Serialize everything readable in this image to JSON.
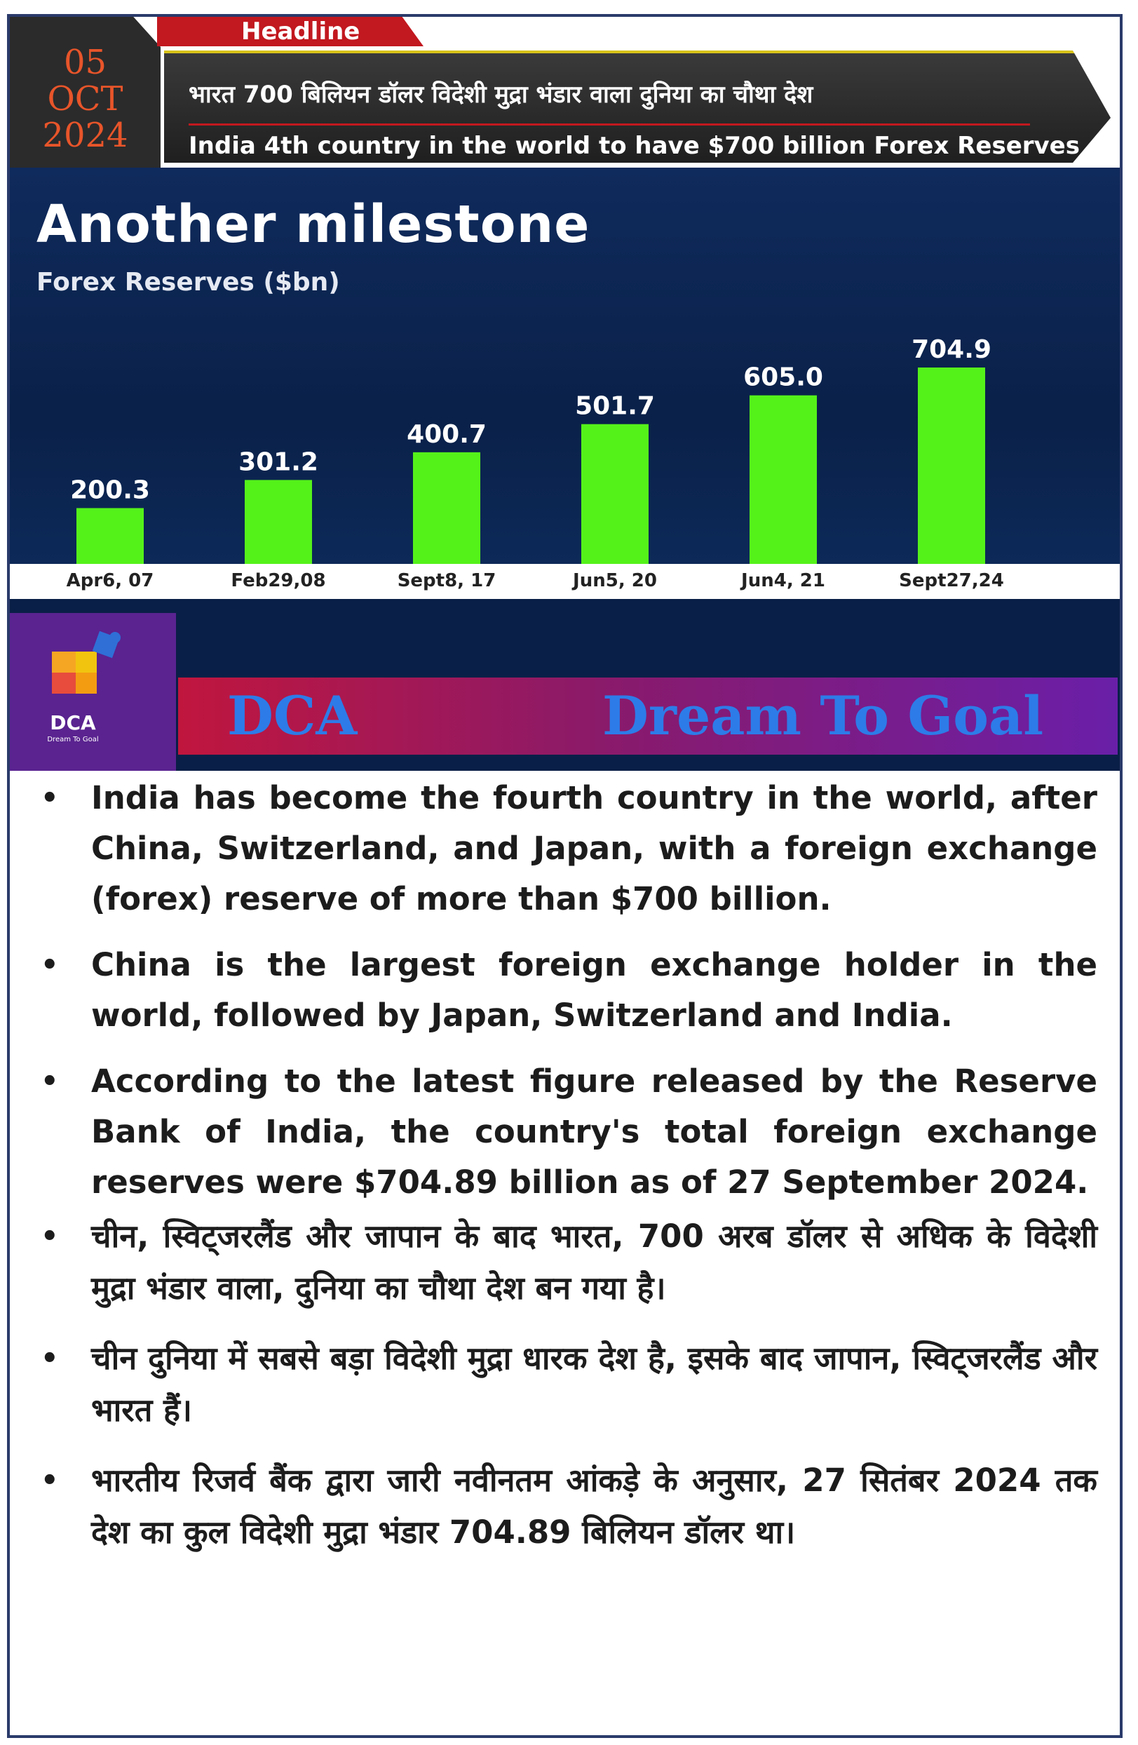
{
  "header": {
    "date_day": "05",
    "date_month": "OCT",
    "date_year": "2024",
    "tab_label": "Headline",
    "headline_hindi": "भारत 700 बिलियन डॉलर विदेशी मुद्रा भंडार वाला दुनिया का चौथा देश",
    "headline_english": "India 4th country in the world to have $700 billion Forex Reserves"
  },
  "chart": {
    "title": "Another milestone",
    "subtitle": "Forex Reserves ($bn)"
  },
  "chart_data": {
    "type": "bar",
    "title": "Another milestone",
    "ylabel": "Forex Reserves ($bn)",
    "categories": [
      "Apr6, 07",
      "Feb29,08",
      "Sept8, 17",
      "Jun5, 20",
      "Jun4, 21",
      "Sept27,24"
    ],
    "values": [
      200.3,
      301.2,
      400.7,
      501.7,
      605.0,
      704.9
    ],
    "value_labels": [
      "200.3",
      "301.2",
      "400.7",
      "501.7",
      "605.0",
      "704.9"
    ],
    "grid": false,
    "bar_color": "#55f21a",
    "label_color": "#ffffff"
  },
  "banner": {
    "logo_text": "DCA",
    "logo_sub": "Dream To Goal",
    "left": "DCA",
    "right": "Dream To Goal"
  },
  "bullets": [
    {
      "text": "India has become the fourth country in the world, after China, Switzerland, and Japan, with a foreign exchange (forex) reserve of more than $700 billion."
    },
    {
      "text": "China is the largest foreign exchange holder in the world, followed by Japan, Switzerland and India."
    },
    {
      "text": "According to the latest figure released by the Reserve Bank of India, the country's total foreign exchange reserves were $704.89 billion as of 27 September 2024."
    },
    {
      "text": "चीन, स्विट्जरलैंड और जापान के बाद भारत, 700 अरब डॉलर से अधिक के विदेशी मुद्रा भंडार वाला, दुनिया का चौथा देश बन गया है।"
    },
    {
      "text": "चीन दुनिया में सबसे बड़ा विदेशी मुद्रा धारक देश है, इसके बाद जापान, स्विट्जरलैंड और भारत हैं।"
    },
    {
      "text": "भारतीय रिजर्व बैंक द्वारा जारी नवीनतम आंकड़े के अनुसार, 27 सितंबर 2024 तक देश का कुल विदेशी मुद्रा भंडार 704.89 बिलियन डॉलर था।"
    }
  ],
  "bullet_symbol": "•"
}
